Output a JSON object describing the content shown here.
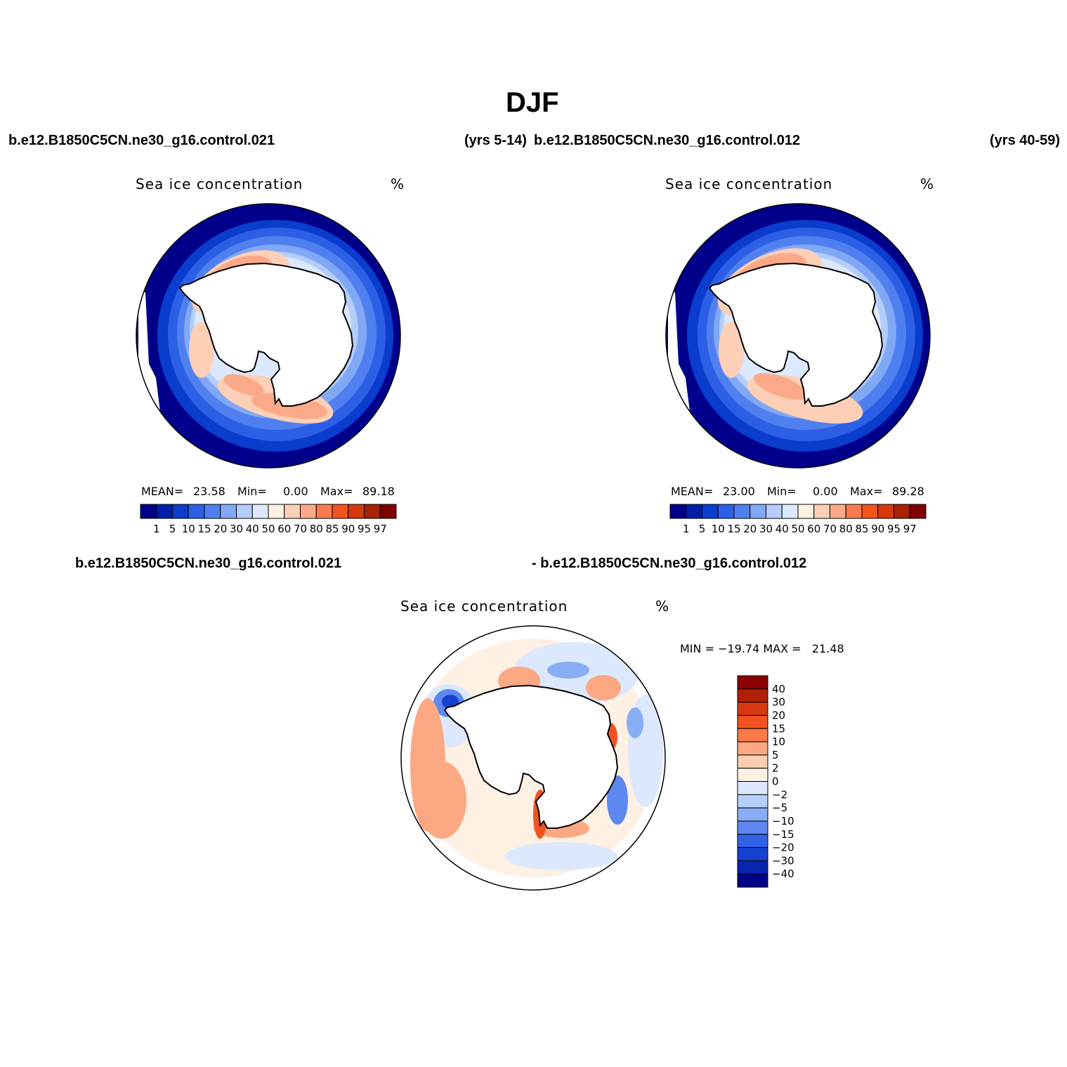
{
  "title": "DJF",
  "headers": {
    "top_left_case": "b.e12.B1850C5CN.ne30_g16.control.021",
    "top_left_years": "(yrs 5-14)",
    "top_right_case": "b.e12.B1850C5CN.ne30_g16.control.012",
    "top_right_years": "(yrs 40-59)",
    "diff_left_case": "b.e12.B1850C5CN.ne30_g16.control.021",
    "diff_right_case": "- b.e12.B1850C5CN.ne30_g16.control.012"
  },
  "panels": [
    {
      "variable": "Sea ice concentration",
      "units": "%",
      "mean_label": "MEAN=",
      "mean": "23.58",
      "min_label": "Min=",
      "min": "0.00",
      "max_label": "Max=",
      "max": "89.18"
    },
    {
      "variable": "Sea ice concentration",
      "units": "%",
      "mean_label": "MEAN=",
      "mean": "23.00",
      "min_label": "Min=",
      "min": "0.00",
      "max_label": "Max=",
      "max": "89.28"
    },
    {
      "variable": "Sea ice concentration",
      "units": "%",
      "minmax_text": "MIN = −19.74 MAX =   21.48"
    }
  ],
  "colorbar_abs": {
    "labels": [
      "1",
      "5",
      "10",
      "15",
      "20",
      "30",
      "40",
      "50",
      "60",
      "70",
      "80",
      "85",
      "90",
      "95",
      "97"
    ],
    "colors": [
      "#00008b",
      "#001ea6",
      "#0a3ccd",
      "#2d5fe6",
      "#5080ef",
      "#80a8f5",
      "#b4cdfa",
      "#dbe8fd",
      "#fff0e4",
      "#fdcfb6",
      "#fba988",
      "#f97a52",
      "#f2541f",
      "#d43a0c",
      "#a82206",
      "#800000"
    ]
  },
  "colorbar_diff": {
    "labels": [
      "40",
      "30",
      "20",
      "15",
      "10",
      "5",
      "2",
      "0",
      "−2",
      "−5",
      "−10",
      "−15",
      "−20",
      "−30",
      "−40"
    ],
    "colors": [
      "#8b0000",
      "#b02008",
      "#d8380f",
      "#f2521f",
      "#f77a48",
      "#fba883",
      "#fdcdb0",
      "#fff0e4",
      "#dbe8fd",
      "#b6cffa",
      "#88adf5",
      "#5e88ef",
      "#3262e6",
      "#1441d2",
      "#0626b0",
      "#00008b"
    ]
  },
  "map_colors": {
    "ocean_open": "#ffffff",
    "ice_low": "#00008b",
    "ice_mid_blue": "#5080ef",
    "ice_light": "#dbe8fd",
    "ice_orange": "#fba988",
    "ice_red": "#f2541f",
    "diff_neg_light": "#dbe8fd",
    "diff_pos_light": "#fff0e4",
    "diff_pos": "#fba883",
    "diff_pos_strong": "#f2521f",
    "diff_neg": "#5e88ef",
    "land": "#ffffff",
    "coast": "#000000"
  }
}
